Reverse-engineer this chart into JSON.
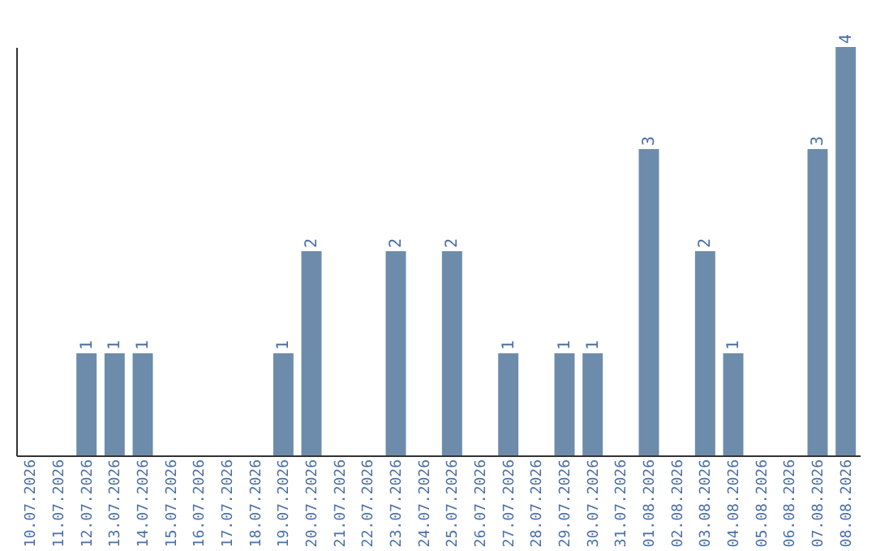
{
  "chart_data": {
    "type": "bar",
    "categories": [
      "10.07.2026",
      "11.07.2026",
      "12.07.2026",
      "13.07.2026",
      "14.07.2026",
      "15.07.2026",
      "16.07.2026",
      "17.07.2026",
      "18.07.2026",
      "19.07.2026",
      "20.07.2026",
      "21.07.2026",
      "22.07.2026",
      "23.07.2026",
      "24.07.2026",
      "25.07.2026",
      "26.07.2026",
      "27.07.2026",
      "28.07.2026",
      "29.07.2026",
      "30.07.2026",
      "31.07.2026",
      "01.08.2026",
      "02.08.2026",
      "03.08.2026",
      "04.08.2026",
      "05.08.2026",
      "06.08.2026",
      "07.08.2026",
      "08.08.2026"
    ],
    "values": [
      0,
      0,
      1,
      1,
      1,
      0,
      0,
      0,
      0,
      1,
      2,
      0,
      0,
      2,
      0,
      2,
      0,
      1,
      0,
      1,
      1,
      0,
      3,
      0,
      2,
      1,
      0,
      0,
      3,
      4
    ],
    "value_labels": [
      null,
      null,
      "1",
      "1",
      "1",
      null,
      null,
      null,
      null,
      "1",
      "2",
      null,
      null,
      "2",
      null,
      "2",
      null,
      "1",
      null,
      "1",
      "1",
      null,
      "3",
      null,
      "2",
      "1",
      null,
      null,
      "3",
      "4"
    ],
    "color": "#6d8cab",
    "grid": false
  }
}
